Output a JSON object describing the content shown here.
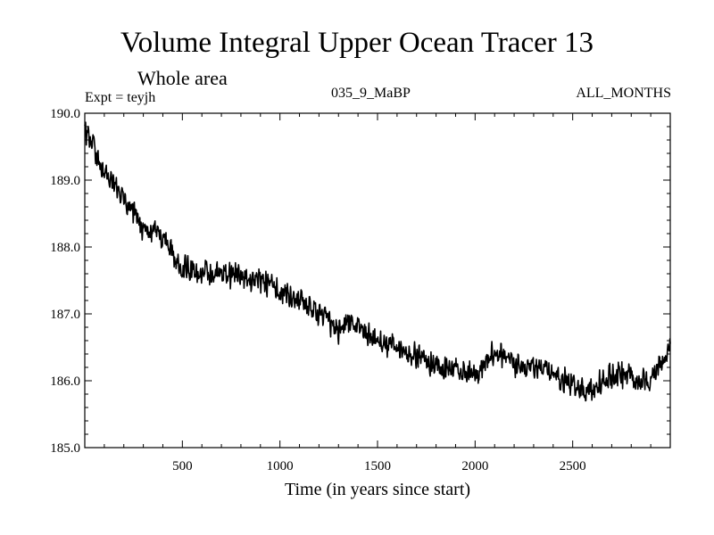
{
  "chart_data": {
    "type": "line",
    "title": "Volume Integral Upper Ocean Tracer 13",
    "subtitle": "Whole area",
    "experiment_label": "Expt = teyjh",
    "run_label": "035_9_MaBP",
    "months_label": "ALL_MONTHS",
    "xlabel": "Time (in years since start)",
    "ylabel": "",
    "xlim": [
      0,
      3000
    ],
    "ylim": [
      185.0,
      190.0
    ],
    "x_ticks": [
      500,
      1000,
      1500,
      2000,
      2500
    ],
    "y_ticks": [
      185.0,
      186.0,
      187.0,
      188.0,
      189.0,
      190.0
    ],
    "x_tick_labels": [
      "500",
      "1000",
      "1500",
      "2000",
      "2500"
    ],
    "y_tick_labels": [
      "185.0",
      "186.0",
      "187.0",
      "188.0",
      "189.0",
      "190.0"
    ],
    "series": [
      {
        "name": "Volume Integral Upper Ocean Tracer 13",
        "color": "#000000",
        "x": [
          0,
          50,
          100,
          150,
          200,
          250,
          300,
          350,
          400,
          450,
          500,
          600,
          700,
          800,
          900,
          1000,
          1100,
          1200,
          1300,
          1350,
          1400,
          1500,
          1600,
          1700,
          1800,
          1900,
          2000,
          2100,
          2200,
          2300,
          2400,
          2500,
          2600,
          2700,
          2800,
          2900,
          3000
        ],
        "values": [
          189.75,
          189.45,
          189.15,
          188.9,
          188.7,
          188.5,
          188.2,
          188.25,
          188.15,
          187.85,
          187.7,
          187.6,
          187.6,
          187.55,
          187.5,
          187.35,
          187.2,
          187.0,
          186.75,
          186.9,
          186.8,
          186.6,
          186.5,
          186.35,
          186.25,
          186.15,
          186.1,
          186.45,
          186.25,
          186.2,
          186.1,
          185.95,
          185.85,
          186.1,
          186.05,
          186.0,
          186.45
        ],
        "noise_amplitude": 0.22
      }
    ]
  }
}
